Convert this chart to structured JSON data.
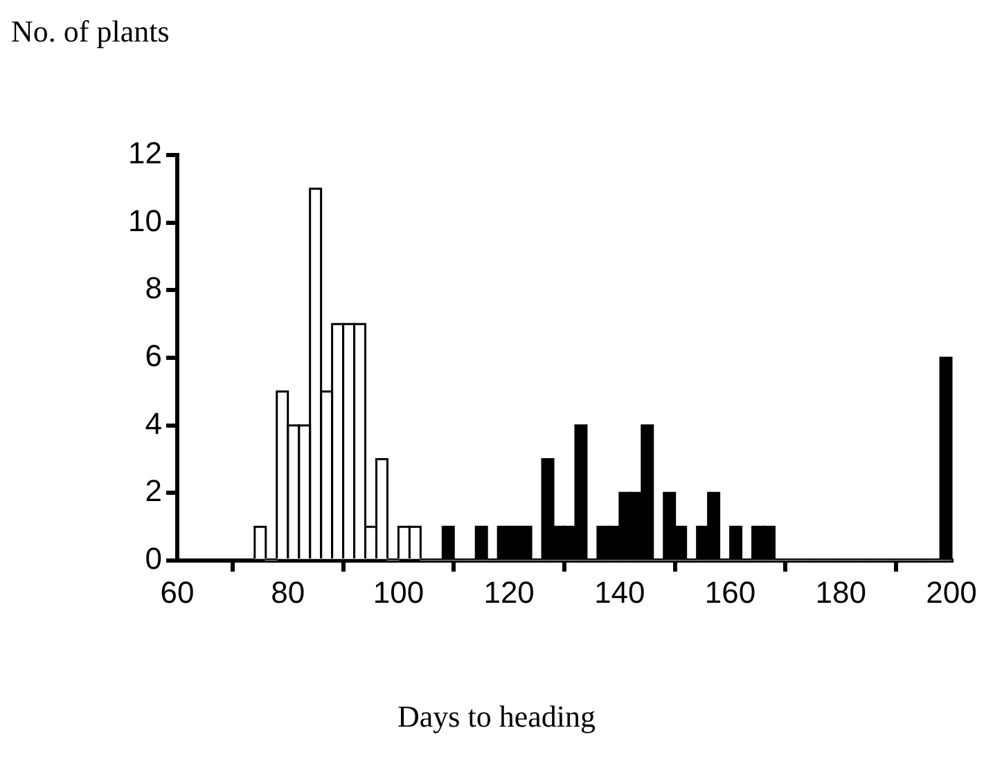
{
  "chart_data": {
    "type": "histogram",
    "ylabel": "No. of plants",
    "xlabel": "Days to heading",
    "bins": [
      74,
      76,
      78,
      80,
      82,
      84,
      86,
      88,
      90,
      92,
      94,
      96,
      98,
      100,
      102,
      104,
      106,
      108,
      110,
      112,
      114,
      116,
      118,
      120,
      122,
      124,
      126,
      128,
      130,
      132,
      134,
      136,
      138,
      140,
      142,
      144,
      146,
      148,
      150,
      152,
      154,
      156,
      158,
      160,
      162,
      164,
      166,
      168,
      170,
      172,
      174,
      176,
      178,
      180,
      182,
      184,
      186,
      188,
      190,
      192,
      194,
      196,
      198,
      200
    ],
    "series": [
      {
        "color": "#ffffff",
        "values": [
          1,
          0,
          5,
          4,
          4,
          11,
          5,
          7,
          7,
          7,
          1,
          3,
          0,
          1,
          1,
          0,
          0,
          0,
          0,
          0,
          0,
          0,
          0,
          0,
          0,
          0,
          0,
          0,
          0,
          0,
          0,
          0,
          0,
          0,
          0,
          0,
          0,
          0,
          0,
          0,
          0,
          0,
          0,
          0,
          0,
          0,
          0,
          0,
          0,
          0,
          0,
          0,
          0,
          0,
          0,
          0,
          0,
          0,
          0,
          0,
          0,
          0,
          0
        ]
      },
      {
        "color": "#000000",
        "values": [
          0,
          0,
          0,
          0,
          0,
          0,
          0,
          0,
          0,
          0,
          0,
          0,
          0,
          0,
          0,
          0,
          0,
          1,
          0,
          0,
          1,
          0,
          1,
          1,
          1,
          0,
          3,
          1,
          1,
          4,
          0,
          1,
          1,
          2,
          2,
          4,
          0,
          2,
          1,
          0,
          1,
          2,
          0,
          1,
          0,
          1,
          1,
          0,
          0,
          0,
          0,
          0,
          0,
          0,
          0,
          0,
          0,
          0,
          0,
          0,
          0,
          0,
          6
        ]
      }
    ],
    "xlim": [
      60,
      200
    ],
    "xticks": [
      60,
      80,
      100,
      120,
      140,
      160,
      180,
      200
    ],
    "ylim": [
      0,
      12
    ],
    "yticks": [
      0,
      2,
      4,
      6,
      8,
      10,
      12
    ]
  }
}
